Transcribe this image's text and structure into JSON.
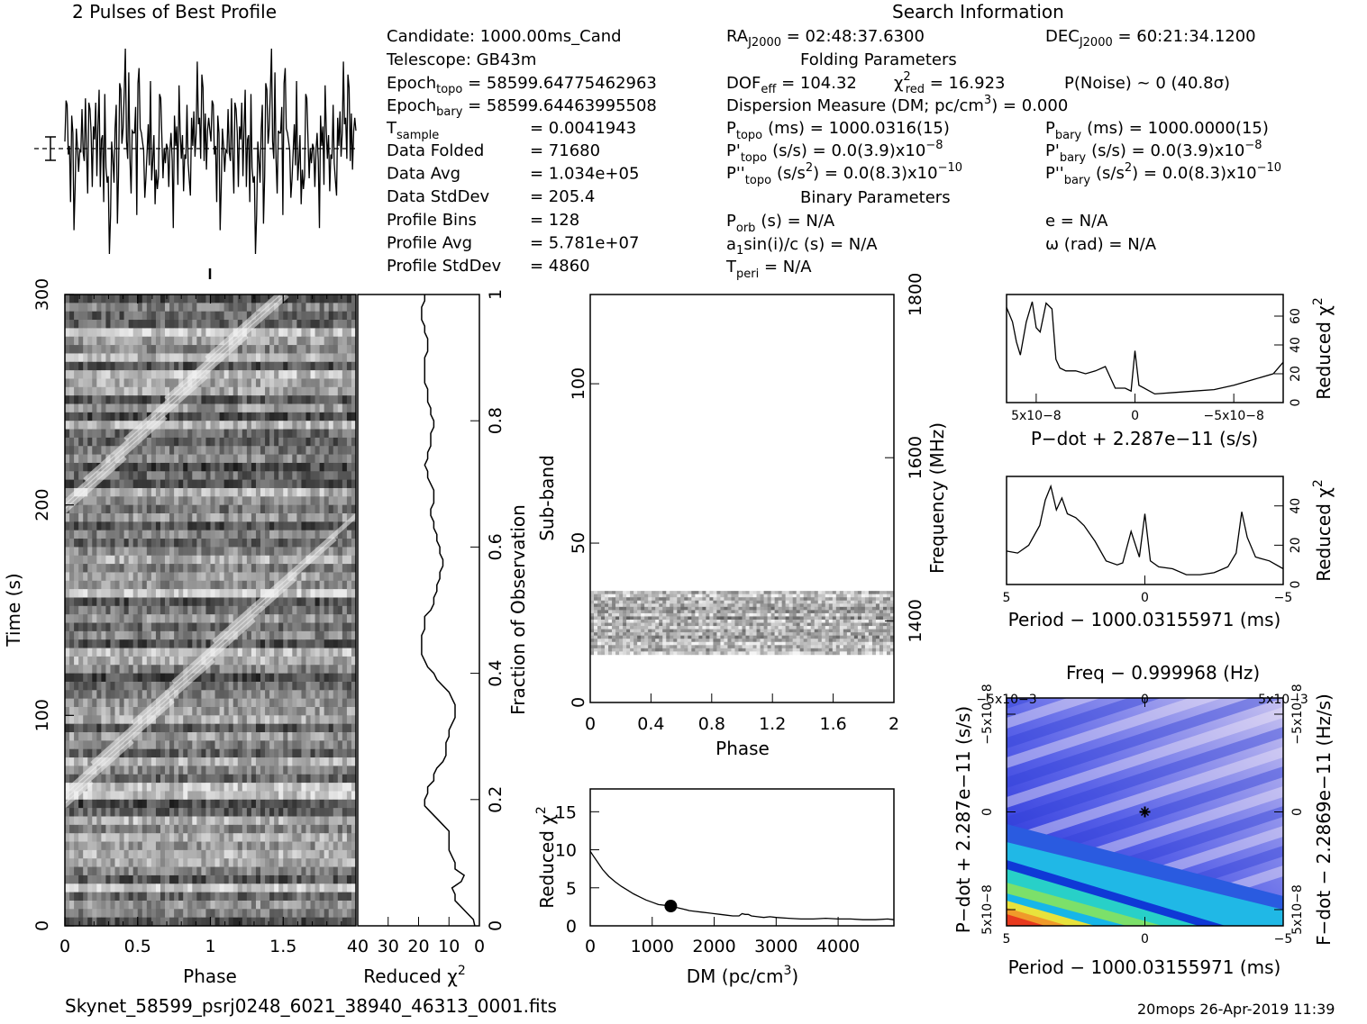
{
  "figure": {
    "profile_title": "2 Pulses of Best Profile",
    "search_title": "Search Information",
    "folding_title": "Folding Parameters",
    "binary_title": "Binary Parameters",
    "filename": "Skynet_58599_psrj0248_6021_38940_46313_0001.fits",
    "footer_right": "20mops  26-Apr-2019 11:39"
  },
  "info": {
    "candidate": "Candidate:   1000.00ms_Cand",
    "telescope": "Telescope:   GB43m",
    "epoch_topo_label": "Epoch",
    "epoch_topo_sub": "topo",
    "epoch_topo_value": " = 58599.64775462963",
    "epoch_bary_label": "Epoch",
    "epoch_bary_sub": "bary",
    "epoch_bary_value": " = 58599.64463995508",
    "tsample_label": "T",
    "tsample_sub": "sample",
    "tsample_value": "=   0.0041943",
    "rows": [
      {
        "label": "Data Folded",
        "value": "=   71680"
      },
      {
        "label": "Data Avg",
        "value": "=   1.034e+05"
      },
      {
        "label": "Data StdDev",
        "value": "=   205.4"
      },
      {
        "label": "Profile Bins",
        "value": "=   128"
      },
      {
        "label": "Profile Avg",
        "value": "=   5.781e+07"
      },
      {
        "label": "Profile StdDev",
        "value": "=   4860"
      }
    ],
    "ra_label": "RA",
    "ra_sub": "J2000",
    "ra_value": " = 02:48:37.6300",
    "dec_label": "DEC",
    "dec_sub": "J2000",
    "dec_value": " = 60:21:34.1200",
    "dof_label": "DOF",
    "dof_sub": "eff",
    "dof_value": " = 104.32",
    "chi_label": "χ",
    "chi_sup": "2",
    "chi_sub": "red",
    "chi_value": " = 16.923",
    "pnoise": "P(Noise) ~ 0    (40.8σ)",
    "dm_line": "Dispersion Measure (DM; pc/cm",
    "dm_sup": "3",
    "dm_value": ") = 0.000",
    "ptopo": "(ms)  =   1000.0316(15)",
    "pbary": "(ms)  =   1000.0000(15)",
    "pdtopo": "(s/s) = 0.0(3.9)x10",
    "pdtopo_exp": "−8",
    "pdbary": "(s/s) = 0.0(3.9)x10",
    "pdbary_exp": "−8",
    "pddtopo": "(s/s",
    "pddtopo_exp2": "2",
    "pddtopo_tail": ") = 0.0(8.3)x10",
    "pddtopo_exp": "−10",
    "pddbary": "(s/s",
    "pddbary_exp2": "2",
    "pddbary_tail": ") = 0.0(8.3)x10",
    "pddbary_exp": "−10",
    "p_sym": "P",
    "pd_sym": "P'",
    "pdd_sym": "P''",
    "sub_topo": "topo",
    "sub_bary": "bary",
    "porb_sub": "orb",
    "porb": "(s) = N/A",
    "a1": "a",
    "a1_sub": "1",
    "a1_tail": "sin(i)/c (s) = N/A",
    "tperi": "T",
    "tperi_sub": "peri",
    "tperi_tail": " = N/A",
    "ecc": "e = N/A",
    "omega": "ω (rad) = N/A"
  },
  "axes": {
    "time_label": "Time (s)",
    "phase_label": "Phase",
    "redchi_label": "Reduced χ",
    "redchi_sup": "2",
    "fraction_label": "Fraction of Observation",
    "subband_label": "Sub-band",
    "frequency_label": "Frequency (MHz)",
    "dm_label": "DM (pc/cm",
    "dm_sup": "3",
    "dm_close": ")",
    "pdot_label": "P−dot + 2.287e−11 (s/s)",
    "period_label": "Period − 1000.03155971 (ms)",
    "freq_label": "Freq − 0.999968 (Hz)",
    "pdot_vert_label": "P−dot + 2.287e−11 (s/s)",
    "fdot_label": "F−dot − 2.2869e−11 (Hz/s)"
  },
  "chart_data": [
    {
      "type": "line",
      "name": "profile",
      "title": "2 Pulses of Best Profile",
      "xlim": [
        0,
        2
      ],
      "values": [
        0.52,
        0.71,
        0.69,
        0.46,
        0.5,
        0.24,
        0.64,
        0.56,
        0.11,
        0.31,
        0.58,
        0.5,
        0.38,
        0.48,
        0.47,
        0.67,
        0.47,
        0.43,
        0.72,
        0.46,
        0.28,
        0.7,
        0.67,
        0.56,
        0.31,
        0.59,
        0.53,
        0.7,
        0.36,
        0.59,
        0.76,
        0.31,
        0.53,
        0.55,
        0.24,
        0.74,
        0.4,
        0.33,
        0.36,
        0.0,
        0.18,
        0.52,
        0.44,
        0.33,
        0.58,
        0.69,
        0.14,
        0.36,
        0.79,
        0.76,
        0.51,
        0.58,
        0.75,
        0.95,
        0.52,
        0.44,
        0.84,
        0.44,
        0.28,
        0.57,
        0.56,
        0.56,
        0.68,
        0.18,
        0.79,
        0.86,
        0.58,
        0.56,
        0.52,
        0.48,
        0.26,
        0.35,
        0.47,
        0.6,
        0.41,
        0.8,
        0.34,
        0.43,
        0.55,
        0.23,
        0.39,
        0.3,
        0.36,
        0.74,
        0.72,
        0.53,
        0.35,
        0.49,
        0.42,
        0.51,
        0.49,
        0.31,
        0.48,
        0.56,
        0.43,
        0.12,
        0.64,
        0.5,
        0.59,
        0.32,
        0.78,
        0.57,
        0.44,
        0.55,
        0.29,
        0.46,
        0.44,
        0.69,
        0.42,
        0.34,
        0.27,
        0.63,
        0.5,
        0.66,
        0.45,
        0.56,
        0.89,
        0.6,
        0.63,
        0.44,
        0.83,
        0.77,
        0.43,
        0.65,
        0.39,
        0.57,
        0.63,
        0.57
      ]
    },
    {
      "type": "heatmap",
      "name": "time-phase",
      "xlabel": "Phase",
      "ylabel": "Time (s)",
      "xlim": [
        0,
        2
      ],
      "ylim": [
        0,
        300
      ],
      "y2label": "Fraction of Observation",
      "y2lim": [
        0,
        1
      ],
      "xticks": [
        0,
        0.5,
        1,
        1.5
      ],
      "yticks": [
        0,
        100,
        200,
        300
      ],
      "y2ticks": [
        0.2,
        0.4,
        0.6,
        0.8,
        1
      ]
    },
    {
      "type": "line",
      "name": "time-chi2",
      "xlabel": "Reduced χ2",
      "xlim": [
        40,
        0
      ],
      "xticks": [
        40,
        30,
        20,
        10,
        0
      ],
      "x": [
        1.5,
        2,
        4,
        6,
        8,
        8,
        9,
        6,
        5,
        8,
        8,
        9,
        10,
        10,
        10,
        10,
        12,
        14,
        16,
        18,
        18,
        17,
        17,
        15,
        15,
        14,
        12,
        11,
        11,
        11,
        10,
        10,
        9,
        8,
        8,
        8,
        9,
        10,
        12,
        14,
        15,
        17,
        18,
        19,
        19,
        19,
        19,
        18,
        18,
        18,
        16,
        15,
        15,
        14,
        14,
        13,
        13,
        12,
        12,
        13,
        13,
        14,
        14,
        15,
        15,
        16,
        16,
        15,
        15,
        15,
        16,
        17,
        17,
        18,
        17,
        17,
        16,
        16,
        16,
        15,
        15,
        16,
        16,
        17,
        17,
        17,
        18,
        18,
        18,
        18,
        18,
        17,
        17,
        17,
        18,
        18,
        19,
        19,
        19,
        18,
        18
      ],
      "y": [
        0,
        0.01,
        0.02,
        0.03,
        0.04,
        0.05,
        0.06,
        0.07,
        0.08,
        0.09,
        0.1,
        0.11,
        0.12,
        0.13,
        0.14,
        0.15,
        0.16,
        0.17,
        0.18,
        0.19,
        0.2,
        0.21,
        0.22,
        0.23,
        0.24,
        0.25,
        0.26,
        0.27,
        0.28,
        0.29,
        0.3,
        0.31,
        0.32,
        0.33,
        0.34,
        0.35,
        0.36,
        0.37,
        0.38,
        0.39,
        0.4,
        0.41,
        0.42,
        0.43,
        0.44,
        0.45,
        0.46,
        0.47,
        0.48,
        0.49,
        0.5,
        0.51,
        0.52,
        0.53,
        0.54,
        0.55,
        0.56,
        0.57,
        0.58,
        0.59,
        0.6,
        0.61,
        0.62,
        0.63,
        0.64,
        0.65,
        0.66,
        0.67,
        0.68,
        0.69,
        0.7,
        0.71,
        0.72,
        0.73,
        0.74,
        0.75,
        0.76,
        0.77,
        0.78,
        0.79,
        0.8,
        0.81,
        0.82,
        0.83,
        0.84,
        0.85,
        0.86,
        0.87,
        0.88,
        0.89,
        0.9,
        0.91,
        0.92,
        0.93,
        0.94,
        0.95,
        0.96,
        0.97,
        0.98,
        0.99,
        1
      ]
    },
    {
      "type": "heatmap",
      "name": "subband-phase",
      "xlabel": "Phase",
      "ylabel": "Sub-band",
      "y2label": "Frequency (MHz)",
      "xlim": [
        0,
        2
      ],
      "ylim": [
        0,
        128
      ],
      "xticks": [
        0,
        0.4,
        0.8,
        1.2,
        1.6,
        2
      ],
      "yticks": [
        0,
        50,
        100
      ],
      "y2ticks": [
        1400,
        1600,
        1800
      ],
      "data_band_subbands": [
        15,
        35
      ]
    },
    {
      "type": "line",
      "name": "dm-chi2",
      "xlabel": "DM (pc/cm3)",
      "ylabel": "Reduced χ2",
      "xlim": [
        0,
        4900
      ],
      "ylim": [
        0,
        18
      ],
      "xticks": [
        0,
        1000,
        2000,
        3000,
        4000
      ],
      "yticks": [
        0,
        5,
        10,
        15
      ],
      "best_dm": 1300,
      "x": [
        0,
        50,
        100,
        150,
        200,
        300,
        400,
        500,
        600,
        700,
        800,
        900,
        1000,
        1100,
        1200,
        1250,
        1300,
        1350,
        1400,
        1500,
        1600,
        1700,
        1800,
        1900,
        2000,
        2100,
        2200,
        2300,
        2400,
        2450,
        2500,
        2550,
        2600,
        2700,
        2800,
        2900,
        3000,
        3200,
        3400,
        3600,
        3800,
        4000,
        4200,
        4400,
        4600,
        4800,
        4900
      ],
      "y": [
        9.8,
        9.2,
        8.6,
        8.0,
        7.4,
        6.5,
        5.8,
        5.2,
        4.7,
        4.2,
        3.8,
        3.4,
        3.1,
        2.8,
        2.7,
        2.9,
        2.6,
        2.5,
        2.4,
        2.2,
        2.0,
        1.9,
        1.8,
        1.7,
        1.6,
        1.5,
        1.4,
        1.3,
        1.3,
        1.6,
        1.5,
        1.5,
        1.3,
        1.2,
        1.1,
        1.2,
        1.1,
        1.0,
        0.9,
        0.9,
        1.0,
        0.9,
        0.9,
        0.8,
        0.8,
        0.9,
        0.8
      ]
    },
    {
      "type": "line",
      "name": "pdot-chi2",
      "xlabel": "P−dot + 2.287e−11 (s/s)",
      "ylabel": "Reduced χ2",
      "xlim": [
        6.5e-08,
        -7.5e-08
      ],
      "ylim": [
        0,
        75
      ],
      "yticks": [
        0,
        20,
        40,
        60
      ],
      "xtick_labels": [
        "5x10−8",
        "0",
        "−5x10−8"
      ],
      "x": [
        6.5e-08,
        6.2e-08,
        6e-08,
        5.8e-08,
        5.5e-08,
        5.2e-08,
        5e-08,
        4.8e-08,
        4.5e-08,
        4.2e-08,
        4e-08,
        3.8e-08,
        3.5e-08,
        3e-08,
        2.5e-08,
        2e-08,
        1.5e-08,
        1e-08,
        5e-09,
        2e-09,
        0,
        -2e-09,
        -1e-08,
        -2e-08,
        -3e-08,
        -4e-08,
        -5e-08,
        -6e-08,
        -7e-08,
        -7.5e-08
      ],
      "y": [
        66,
        56,
        42,
        33,
        56,
        70,
        52,
        49,
        69,
        65,
        30,
        24,
        22,
        22,
        20,
        22,
        25,
        10,
        10,
        8,
        36,
        12,
        6,
        7,
        8,
        9,
        12,
        16,
        20,
        28
      ]
    },
    {
      "type": "line",
      "name": "period-chi2",
      "xlabel": "Period − 1000.03155971 (ms)",
      "ylabel": "Reduced χ2",
      "xlim": [
        5,
        -5
      ],
      "ylim": [
        0,
        55
      ],
      "xticks": [
        5,
        0,
        -5
      ],
      "yticks": [
        0,
        20,
        40
      ],
      "x": [
        5,
        4.6,
        4.2,
        3.8,
        3.6,
        3.4,
        3.2,
        3.0,
        2.8,
        2.5,
        2.2,
        1.8,
        1.4,
        1.0,
        0.8,
        0.5,
        0.2,
        0,
        -0.2,
        -0.5,
        -1.0,
        -1.5,
        -2.0,
        -2.5,
        -3.0,
        -3.3,
        -3.5,
        -3.7,
        -4.0,
        -4.5,
        -5
      ],
      "y": [
        17,
        16,
        20,
        30,
        43,
        50,
        38,
        44,
        36,
        34,
        30,
        22,
        12,
        10,
        11,
        27,
        14,
        36,
        12,
        9,
        8,
        5,
        5,
        6,
        9,
        16,
        37,
        24,
        14,
        12,
        8
      ]
    },
    {
      "type": "heatmap",
      "name": "period-pdot",
      "xlabel": "Period − 1000.03155971 (ms)",
      "ylabel": "P−dot + 2.287e−11 (s/s)",
      "x2label": "Freq − 0.999968 (Hz)",
      "y2label": "F−dot − 2.2869e−11 (Hz/s)",
      "xlim": [
        5,
        -5
      ],
      "ylim": [
        5e-08,
        -5e-08
      ],
      "xtick_labels": [
        "5",
        "0",
        "−5"
      ],
      "ytick_labels": [
        "5x10−8",
        "0",
        "−5x10−8"
      ],
      "x2tick_labels": [
        "−5x10−3",
        "0",
        "5x10−3"
      ],
      "y2tick_labels": [
        "−5x10−8",
        "0",
        "5x10−8"
      ],
      "best": {
        "x": 0,
        "y": 0
      }
    }
  ]
}
